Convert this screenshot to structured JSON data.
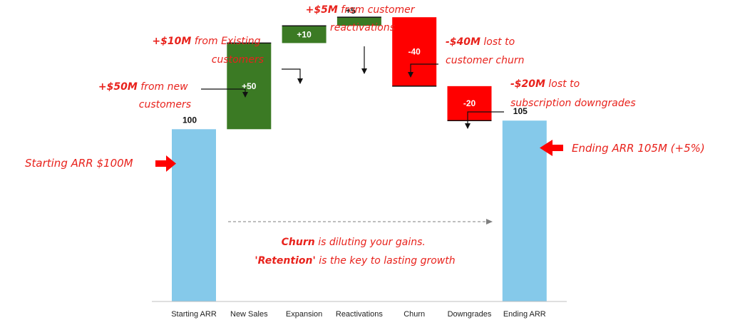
{
  "chart_data": {
    "type": "bar",
    "subtype": "waterfall",
    "categories": [
      "Starting ARR",
      "New Sales",
      "Expansion",
      "Reactivations",
      "Churn",
      "Downgrades",
      "Ending ARR"
    ],
    "values": [
      100,
      50,
      10,
      5,
      -40,
      -20,
      105
    ],
    "value_labels": [
      "100",
      "+50",
      "+10",
      "+5",
      "-40",
      "-20",
      "105"
    ],
    "kinds": [
      "total",
      "increase",
      "increase",
      "increase",
      "decrease",
      "decrease",
      "total"
    ],
    "ylim": [
      0,
      175
    ],
    "grid": false,
    "legend": "none",
    "colors": {
      "total": "#85c9ea",
      "increase": "#3b7a24",
      "decrease": "#ff0000",
      "annotation": "#e8221c",
      "label_on_bar": "#ffffff",
      "label_outside": "#111111"
    },
    "annotations": {
      "start_label": "Starting ARR $100M",
      "end_label": "Ending ARR 105M (+5%)",
      "new_sales": {
        "bold": "+$50M",
        "line1_rest": " from new",
        "line2": "customers"
      },
      "expansion": {
        "bold": "+$10M",
        "line1_rest": " from Existing",
        "line2": "customers"
      },
      "reactivations": {
        "bold": "+$5M",
        "line1_rest": " from customer",
        "line2": "reactivations"
      },
      "churn": {
        "bold": "-$40M",
        "line1_rest": " lost to",
        "line2": "customer churn"
      },
      "downgrades": {
        "bold": "-$20M",
        "line1_rest": " lost to",
        "line2": "subscription downgrades"
      },
      "message": {
        "line1_bold": "Churn",
        "line1_rest": " is diluting your gains.",
        "line2_bold": "'Retention'",
        "line2_rest": " is the key to lasting growth"
      }
    }
  }
}
